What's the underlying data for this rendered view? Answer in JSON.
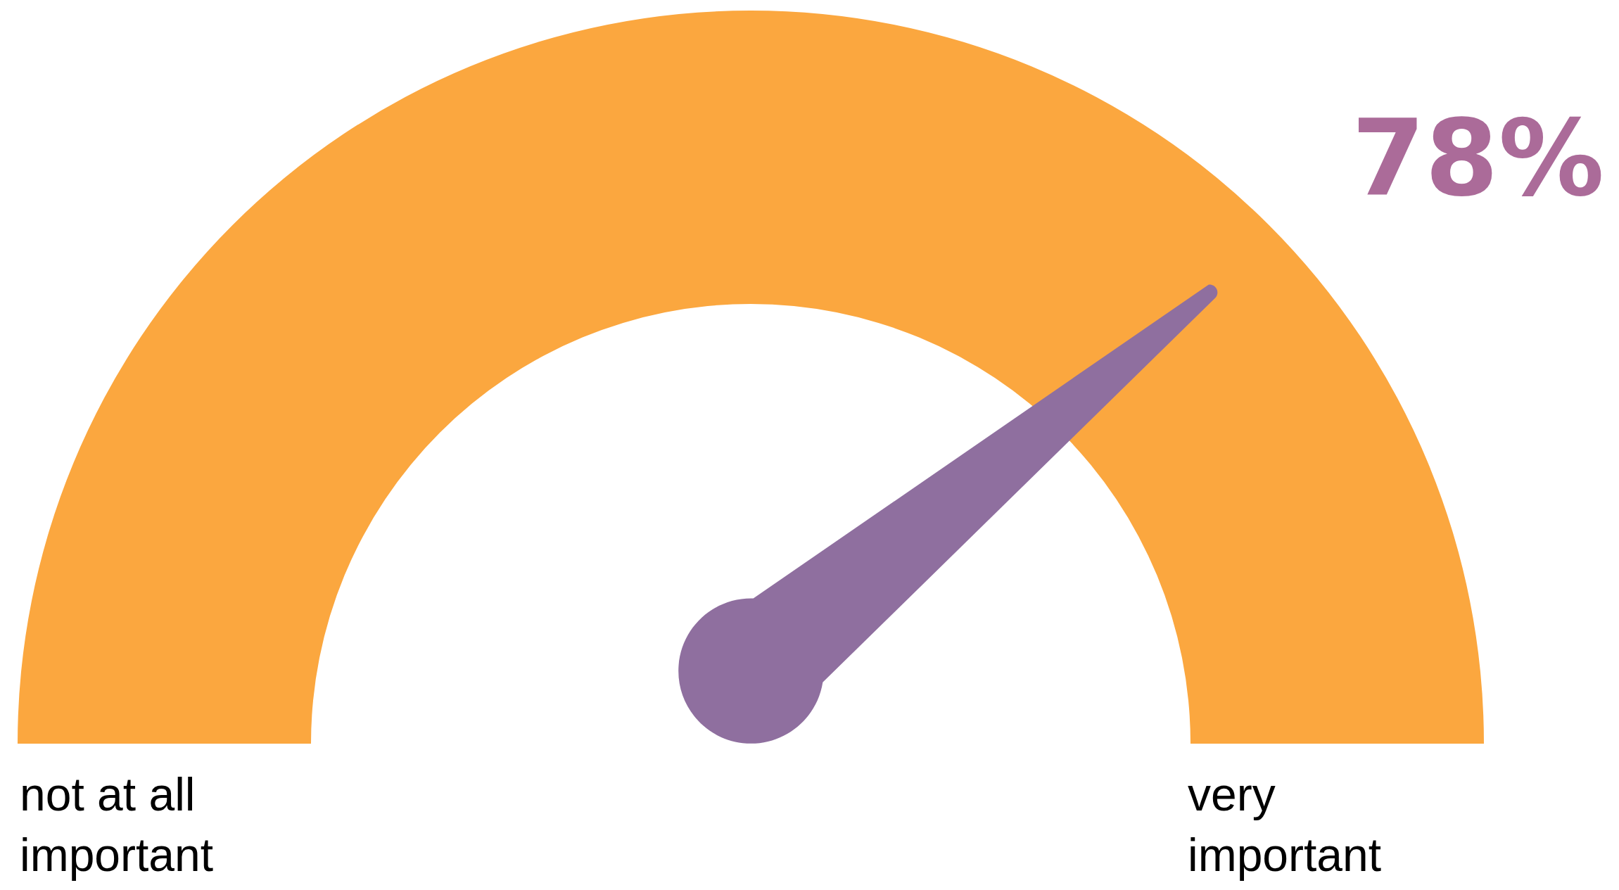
{
  "chart_data": {
    "type": "other",
    "values": [
      78
    ],
    "value_labels": [
      "78%"
    ],
    "color": "#fba73f",
    "annotations": [
      "not at all important",
      "very important"
    ]
  }
}
